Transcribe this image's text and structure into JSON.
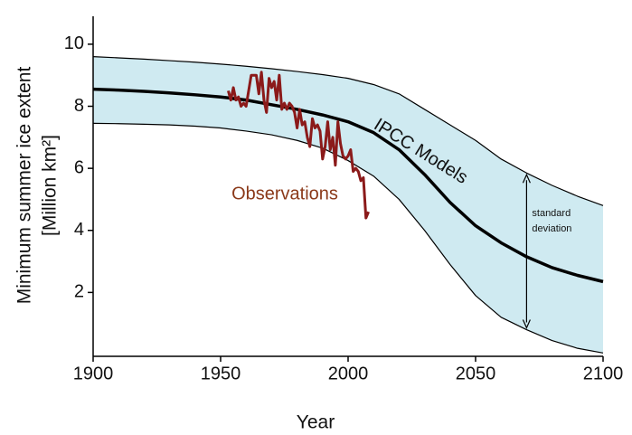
{
  "chart_data": {
    "type": "line",
    "xlabel": "Year",
    "ylabel": [
      "Minimum summer ice extent",
      "[Million km²]"
    ],
    "xlim": [
      1900,
      2100
    ],
    "xticks": [
      1900,
      1950,
      2000,
      2050,
      2100
    ],
    "ylim": [
      0,
      10.9
    ],
    "yticks": [
      2,
      4,
      6,
      8,
      10
    ],
    "band_color": "#cfeaf1",
    "series": [
      {
        "name": "IPCC Models",
        "color": "#000000",
        "x": [
          1900,
          1910,
          1920,
          1930,
          1940,
          1950,
          1960,
          1970,
          1980,
          1990,
          2000,
          2010,
          2020,
          2030,
          2040,
          2050,
          2060,
          2070,
          2080,
          2090,
          2100
        ],
        "values": [
          8.55,
          8.52,
          8.48,
          8.43,
          8.37,
          8.3,
          8.2,
          8.05,
          7.9,
          7.72,
          7.5,
          7.15,
          6.6,
          5.8,
          4.9,
          4.15,
          3.6,
          3.15,
          2.8,
          2.55,
          2.35
        ]
      },
      {
        "color": "#000000",
        "x": [
          1900,
          1910,
          1920,
          1930,
          1940,
          1950,
          1960,
          1970,
          1980,
          1990,
          2000,
          2010,
          2020,
          2030,
          2040,
          2050,
          2060,
          2070,
          2080,
          2090,
          2100
        ],
        "values": [
          9.6,
          9.56,
          9.52,
          9.47,
          9.42,
          9.36,
          9.29,
          9.21,
          9.12,
          9.02,
          8.9,
          8.7,
          8.4,
          7.9,
          7.4,
          6.9,
          6.3,
          5.85,
          5.45,
          5.1,
          4.8
        ]
      },
      {
        "color": "#000000",
        "x": [
          1900,
          1910,
          1920,
          1930,
          1940,
          1950,
          1960,
          1970,
          1980,
          1990,
          2000,
          2010,
          2020,
          2030,
          2040,
          2050,
          2060,
          2070,
          2080,
          2090,
          2100
        ],
        "values": [
          7.45,
          7.44,
          7.42,
          7.4,
          7.36,
          7.3,
          7.2,
          7.08,
          6.9,
          6.65,
          6.25,
          5.75,
          5.0,
          4.0,
          2.9,
          1.9,
          1.2,
          0.8,
          0.45,
          0.2,
          0.05
        ]
      },
      {
        "name": "Observations",
        "color": "#8b1a1a",
        "label_color": "#8b3a1a",
        "x": [
          1953,
          1954,
          1955,
          1956,
          1957,
          1958,
          1959,
          1960,
          1961,
          1962,
          1963,
          1964,
          1965,
          1966,
          1967,
          1968,
          1969,
          1970,
          1971,
          1972,
          1973,
          1974,
          1975,
          1976,
          1977,
          1978,
          1979,
          1980,
          1981,
          1982,
          1983,
          1984,
          1985,
          1986,
          1987,
          1988,
          1989,
          1990,
          1991,
          1992,
          1993,
          1994,
          1995,
          1996,
          1997,
          1998,
          1999,
          2000,
          2001,
          2002,
          2003,
          2004,
          2005,
          2006,
          2007,
          2008
        ],
        "values": [
          8.5,
          8.2,
          8.6,
          8.2,
          8.3,
          8.0,
          8.1,
          8.0,
          8.5,
          9.0,
          9.0,
          9.0,
          8.4,
          9.1,
          8.2,
          7.8,
          8.9,
          8.6,
          8.8,
          8.2,
          9.0,
          7.9,
          8.1,
          7.9,
          8.1,
          8.0,
          7.8,
          7.3,
          7.9,
          7.4,
          7.5,
          7.0,
          6.7,
          7.6,
          7.3,
          7.4,
          7.2,
          6.3,
          6.7,
          7.5,
          6.6,
          7.0,
          6.1,
          7.5,
          6.8,
          6.4,
          6.3,
          6.4,
          6.6,
          5.9,
          6.0,
          5.9,
          5.6,
          5.7,
          4.4,
          4.6
        ]
      }
    ],
    "annotation": [
      "standard",
      "deviation"
    ]
  }
}
